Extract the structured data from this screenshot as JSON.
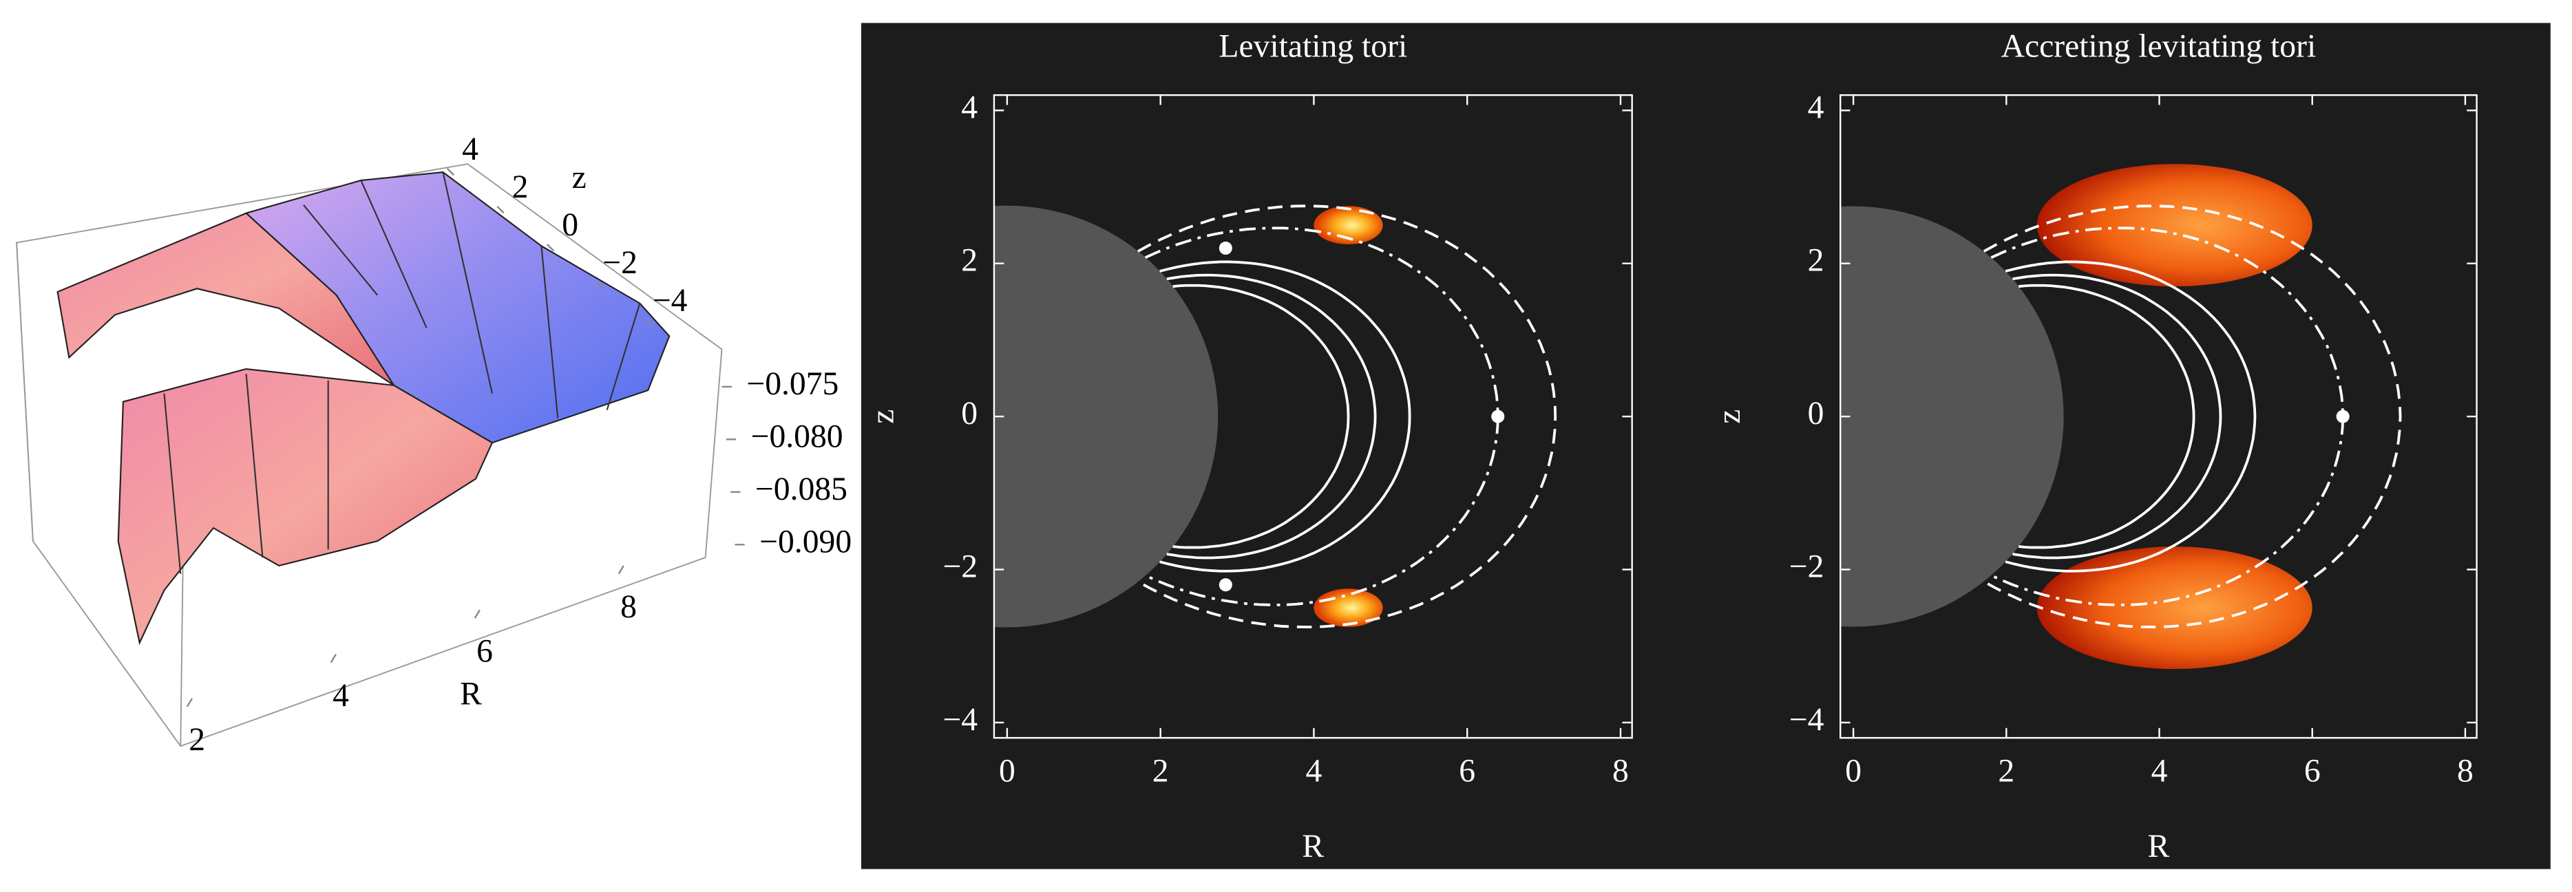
{
  "chart_data": [
    {
      "type": "surface3d",
      "xlabel": "R",
      "ylabel": "z",
      "xlim": [
        2,
        9
      ],
      "xticks": [
        2,
        4,
        6,
        8
      ],
      "ylim": [
        -4.5,
        4.5
      ],
      "yticks": [
        4,
        2,
        0,
        {
          "value": -2,
          "label": "−2"
        },
        {
          "value": -4,
          "label": "−4"
        }
      ],
      "zlim": [
        -0.092,
        -0.073
      ],
      "zticks": [
        {
          "value": -0.075,
          "label": "−0.075"
        },
        {
          "value": -0.08,
          "label": "−0.080"
        },
        {
          "value": -0.085,
          "label": "−0.085"
        },
        {
          "value": -0.09,
          "label": "−0.090"
        }
      ]
    },
    {
      "type": "field",
      "title": "Levitating tori",
      "xlabel": "R",
      "ylabel": "z",
      "xlim": [
        -0.17,
        8.15
      ],
      "xticks": [
        0,
        2,
        4,
        6,
        8
      ],
      "ylim": [
        -4.2,
        4.2
      ],
      "yticks": [
        {
          "value": -4,
          "label": "−4"
        },
        {
          "value": -2,
          "label": "−2"
        },
        0,
        2,
        4
      ],
      "body_radius": 2.75,
      "field_lines": [
        4.45,
        4.8,
        5.25
      ],
      "separatrix": 6.4,
      "dashed_lines": [
        7.15
      ],
      "points": {
        "x": [
          2.85,
          2.85,
          6.4
        ],
        "y": [
          2.2,
          -2.2,
          0
        ]
      },
      "tori": {
        "x": [
          4.45,
          4.45
        ],
        "y": [
          2.5,
          -2.5
        ],
        "rx": [
          0.45,
          0.45
        ],
        "ry": [
          0.25,
          0.25
        ]
      }
    },
    {
      "type": "field",
      "title": "Accreting levitating tori",
      "xlabel": "R",
      "ylabel": "z",
      "xlim": [
        -0.17,
        8.15
      ],
      "xticks": [
        0,
        2,
        4,
        6,
        8
      ],
      "ylim": [
        -4.2,
        4.2
      ],
      "yticks": [
        {
          "value": -4,
          "label": "−4"
        },
        {
          "value": -2,
          "label": "−2"
        },
        0,
        2,
        4
      ],
      "body_radius": 2.75,
      "field_lines": [
        4.45,
        4.8,
        5.25
      ],
      "separatrix": 6.4,
      "dashed_lines": [
        7.15
      ],
      "points": {
        "x": [
          6.4
        ],
        "y": [
          0
        ]
      },
      "tori": {
        "x": [
          4.2,
          4.2
        ],
        "y": [
          2.5,
          -2.5
        ],
        "rx": [
          1.8,
          1.8
        ],
        "ry": [
          0.8,
          0.8
        ]
      }
    }
  ]
}
